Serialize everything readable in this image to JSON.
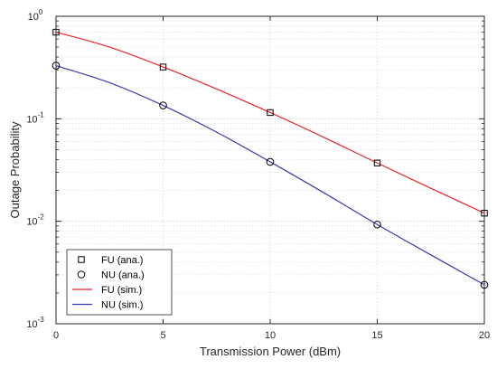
{
  "chart_data": {
    "type": "line",
    "xlabel": "Transmission Power (dBm)",
    "ylabel": "Outage Probability",
    "xlim": [
      0,
      20
    ],
    "ylim": [
      0.001,
      1
    ],
    "yscale": "log",
    "grid": true,
    "legend_position": "bottom-left",
    "x_ticks": [
      0,
      5,
      10,
      15,
      20
    ],
    "x_tick_labels": [
      "0",
      "5",
      "10",
      "15",
      "20"
    ],
    "y_ticks": [
      0.001,
      0.01,
      0.1,
      1
    ],
    "y_tick_labels": [
      {
        "base": "10",
        "exp": "-3"
      },
      {
        "base": "10",
        "exp": "-2"
      },
      {
        "base": "10",
        "exp": "-1"
      },
      {
        "base": "10",
        "exp": "0"
      }
    ],
    "series": [
      {
        "name": "FU (ana.)",
        "style": "markers",
        "marker": "square",
        "color": "#000000",
        "x": [
          0,
          5,
          10,
          15,
          20
        ],
        "y": [
          0.7,
          0.32,
          0.115,
          0.037,
          0.012
        ]
      },
      {
        "name": "NU (ana.)",
        "style": "markers",
        "marker": "circle",
        "color": "#000000",
        "x": [
          0,
          5,
          10,
          15,
          20
        ],
        "y": [
          0.33,
          0.135,
          0.038,
          0.0093,
          0.0024
        ]
      },
      {
        "name": "FU (sim.)",
        "style": "line",
        "color": "#e8242c",
        "x": [
          0,
          2.5,
          5,
          7.5,
          10,
          12.5,
          15,
          17.5,
          20
        ],
        "y": [
          0.7,
          0.5,
          0.32,
          0.195,
          0.115,
          0.066,
          0.037,
          0.021,
          0.012
        ]
      },
      {
        "name": "NU (sim.)",
        "style": "line",
        "color": "#3a3ab0",
        "x": [
          0,
          2.5,
          5,
          7.5,
          10,
          12.5,
          15,
          17.5,
          20
        ],
        "y": [
          0.33,
          0.225,
          0.135,
          0.074,
          0.038,
          0.019,
          0.0093,
          0.0047,
          0.0024
        ]
      }
    ]
  }
}
